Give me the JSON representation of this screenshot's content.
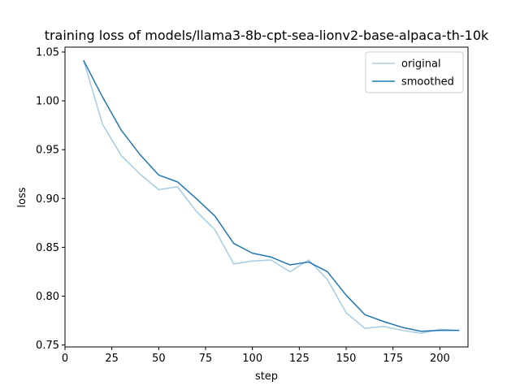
{
  "chart_data": {
    "type": "line",
    "title": "training loss of models/llama3-8b-cpt-sea-lionv2-base-alpaca-th-10k",
    "xlabel": "step",
    "ylabel": "loss",
    "xlim": [
      0,
      215
    ],
    "ylim": [
      0.748,
      1.055
    ],
    "x_ticks": [
      0,
      25,
      50,
      75,
      100,
      125,
      150,
      175,
      200
    ],
    "y_ticks": [
      0.75,
      0.8,
      0.85,
      0.9,
      0.95,
      1.0,
      1.05
    ],
    "x_tick_labels": [
      "0",
      "25",
      "50",
      "75",
      "100",
      "125",
      "150",
      "175",
      "200"
    ],
    "y_tick_labels": [
      "0.75",
      "0.80",
      "0.85",
      "0.90",
      "0.95",
      "1.00",
      "1.05"
    ],
    "legend_position": "upper right",
    "grid": false,
    "series": [
      {
        "name": "original",
        "color": "#a6cbe3",
        "x": [
          10,
          20,
          30,
          40,
          50,
          60,
          70,
          80,
          90,
          100,
          110,
          120,
          130,
          140,
          150,
          160,
          170,
          180,
          190,
          200,
          210
        ],
        "y": [
          1.041,
          0.976,
          0.944,
          0.925,
          0.909,
          0.912,
          0.887,
          0.868,
          0.833,
          0.836,
          0.837,
          0.825,
          0.837,
          0.817,
          0.783,
          0.767,
          0.769,
          0.765,
          0.762,
          0.766,
          0.765
        ]
      },
      {
        "name": "smoothed",
        "color": "#1f77b4",
        "x": [
          10,
          20,
          30,
          40,
          50,
          60,
          70,
          80,
          90,
          100,
          110,
          120,
          130,
          140,
          150,
          160,
          170,
          180,
          190,
          200,
          210
        ],
        "y": [
          1.041,
          1.004,
          0.97,
          0.945,
          0.924,
          0.917,
          0.9,
          0.882,
          0.854,
          0.844,
          0.84,
          0.832,
          0.835,
          0.825,
          0.801,
          0.781,
          0.774,
          0.768,
          0.764,
          0.765,
          0.765
        ]
      }
    ]
  }
}
